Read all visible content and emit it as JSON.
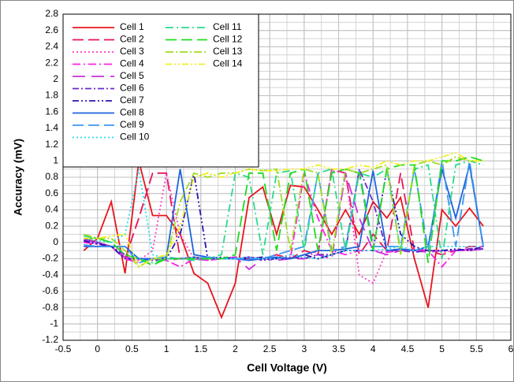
{
  "chart_data": {
    "type": "line",
    "xlabel": "Cell Voltage (V)",
    "ylabel": "Accuracy (mV)",
    "xlim": [
      -0.5,
      6
    ],
    "ylim": [
      -1.2,
      2.8
    ],
    "xticks": [
      -0.5,
      0,
      0.5,
      1,
      1.5,
      2,
      2.5,
      3,
      3.5,
      4,
      4.5,
      5,
      5.5,
      6
    ],
    "yticks": [
      -1.2,
      -1,
      -0.8,
      -0.6,
      -0.4,
      -0.2,
      0,
      0.2,
      0.4,
      0.6,
      0.8,
      1,
      1.2,
      1.4,
      1.6,
      1.8,
      2,
      2.2,
      2.4,
      2.6,
      2.8
    ],
    "grid": true,
    "xminor": 0.25,
    "yminor": 0.1,
    "legend": "upper left",
    "x": [
      -0.2,
      0,
      0.2,
      0.4,
      0.6,
      0.8,
      1,
      1.2,
      1.4,
      1.6,
      1.8,
      2,
      2.2,
      2.4,
      2.6,
      2.8,
      3,
      3.2,
      3.4,
      3.6,
      3.8,
      4,
      4.2,
      4.4,
      4.6,
      4.8,
      5,
      5.2,
      5.4,
      5.6
    ],
    "series": [
      {
        "name": "Cell 1",
        "color": "#e8141e",
        "dash": "",
        "values": [
          -0.1,
          0.05,
          0.5,
          -0.38,
          1.0,
          0.33,
          0.33,
          0.1,
          -0.38,
          -0.5,
          -0.92,
          -0.5,
          0.55,
          0.68,
          0.1,
          0.7,
          0.68,
          0.4,
          0.1,
          0.4,
          0.1,
          0.5,
          0.3,
          0.55,
          -0.2,
          -0.8,
          0.4,
          0.2,
          0.42,
          0.2
        ]
      },
      {
        "name": "Cell 2",
        "color": "#e8145a",
        "dash": "14,6",
        "values": [
          0.05,
          0,
          -0.05,
          -0.2,
          0.3,
          0.85,
          0.85,
          -0.2,
          -0.18,
          -0.2,
          -0.2,
          -0.18,
          -0.2,
          -0.2,
          -0.15,
          -0.2,
          -0.1,
          -0.15,
          0.9,
          0.85,
          -0.15,
          0.1,
          -0.1,
          0.85,
          -0.1,
          -0.1,
          -0.15,
          -0.1,
          -0.05,
          -0.05
        ]
      },
      {
        "name": "Cell 3",
        "color": "#ff3cc8",
        "dash": "2,3",
        "values": [
          0.02,
          -0.02,
          -0.05,
          -0.2,
          -0.22,
          -0.1,
          0.85,
          0.1,
          -0.2,
          -0.22,
          -0.2,
          -0.2,
          -0.18,
          -0.2,
          -0.2,
          -0.15,
          -0.2,
          -0.1,
          0.88,
          0.85,
          -0.4,
          -0.5,
          -0.1,
          -0.08,
          -0.1,
          -0.1,
          -0.12,
          -0.1,
          -0.1,
          -0.05
        ]
      },
      {
        "name": "Cell 4",
        "color": "#ff1ee6",
        "dash": "10,4,2,4",
        "values": [
          0,
          -0.02,
          -0.05,
          -0.2,
          -0.25,
          -0.2,
          -0.22,
          -0.3,
          -0.2,
          -0.22,
          -0.2,
          -0.2,
          -0.18,
          -0.2,
          -0.18,
          -0.2,
          0.85,
          0.3,
          -0.1,
          -0.15,
          -0.1,
          -0.1,
          -0.12,
          -0.1,
          -0.08,
          -0.1,
          -0.3,
          -0.1,
          -0.08,
          -0.05
        ]
      },
      {
        "name": "Cell 5",
        "color": "#c832dc",
        "dash": "16,8",
        "values": [
          0.03,
          0,
          -0.05,
          -0.18,
          -0.2,
          -0.2,
          -0.22,
          -0.2,
          -0.2,
          -0.22,
          -0.2,
          -0.18,
          -0.33,
          -0.2,
          -0.22,
          -0.2,
          -0.2,
          -0.15,
          -0.2,
          0.85,
          0.3,
          -0.1,
          -0.15,
          -0.1,
          -0.1,
          -0.12,
          -0.1,
          -0.1,
          -0.1,
          -0.08
        ]
      },
      {
        "name": "Cell 6",
        "color": "#6e28c8",
        "dash": "8,3,2,3",
        "values": [
          0.05,
          0,
          -0.05,
          -0.15,
          -0.2,
          -0.22,
          -0.2,
          -0.2,
          -0.18,
          -0.2,
          -0.2,
          -0.2,
          -0.18,
          -0.22,
          -0.2,
          -0.18,
          -0.2,
          -0.15,
          -0.15,
          -0.1,
          0.9,
          0.5,
          -0.1,
          -0.1,
          -0.12,
          -0.1,
          -0.1,
          -0.1,
          -0.08,
          -0.08
        ]
      },
      {
        "name": "Cell 7",
        "color": "#2814b4",
        "dash": "8,3,2,3,2,3",
        "values": [
          0.02,
          -0.02,
          -0.05,
          -0.2,
          -0.2,
          -0.2,
          -0.2,
          0.1,
          0.85,
          -0.2,
          -0.18,
          -0.2,
          -0.2,
          -0.18,
          -0.2,
          -0.2,
          -0.15,
          -0.2,
          -0.15,
          -0.1,
          -0.1,
          -0.1,
          0.9,
          0.1,
          -0.05,
          -0.1,
          -0.1,
          -0.08,
          -0.1,
          -0.05
        ]
      },
      {
        "name": "Cell 8",
        "color": "#1e64dc",
        "dash": "",
        "values": [
          -0.05,
          -0.05,
          -0.05,
          -0.05,
          -0.2,
          -0.2,
          -0.18,
          0.9,
          -0.15,
          -0.18,
          -0.2,
          -0.2,
          -0.22,
          -0.2,
          -0.18,
          -0.2,
          -0.15,
          -0.1,
          -0.1,
          -0.08,
          -0.05,
          0.88,
          -0.1,
          -0.08,
          -0.1,
          -0.05,
          0.9,
          0.3,
          0.95,
          -0.05
        ]
      },
      {
        "name": "Cell 9",
        "color": "#3c96f0",
        "dash": "14,6",
        "values": [
          -0.03,
          -0.05,
          -0.05,
          -0.05,
          -0.25,
          -0.2,
          -0.18,
          -0.2,
          -0.2,
          -0.18,
          -0.2,
          -0.2,
          -0.2,
          -0.2,
          -0.15,
          -0.1,
          -0.05,
          0.85,
          -0.1,
          -0.05,
          0.88,
          -0.05,
          -0.05,
          -0.05,
          0.9,
          -0.1,
          1.0,
          -0.05,
          1.0,
          -0.05
        ]
      },
      {
        "name": "Cell 10",
        "color": "#28dcf0",
        "dash": "2,3",
        "values": [
          0.05,
          0.02,
          0,
          0.1,
          0.9,
          -0.15,
          -0.2,
          -0.2,
          -0.18,
          -0.2,
          -0.2,
          -0.2,
          -0.18,
          -0.2,
          -0.2,
          -0.15,
          -0.18,
          -0.2,
          -0.15,
          -0.1,
          -0.1,
          -0.1,
          -0.08,
          -0.05,
          -0.1,
          -0.05,
          -0.05,
          -0.05,
          -0.05,
          -0.05
        ]
      },
      {
        "name": "Cell 11",
        "color": "#28dc8c",
        "dash": "10,4,2,4",
        "values": [
          0.08,
          0.05,
          0,
          -0.15,
          -0.2,
          -0.25,
          -0.2,
          -0.2,
          -0.22,
          -0.2,
          -0.15,
          0.85,
          0.8,
          -0.15,
          0.85,
          0.88,
          -0.1,
          0.85,
          0.9,
          -0.1,
          0.85,
          0.8,
          0.9,
          -0.1,
          0.9,
          0.95,
          -0.2,
          0.95,
          1.0,
          0.95
        ]
      },
      {
        "name": "Cell 12",
        "color": "#1edc1e",
        "dash": "14,6",
        "values": [
          0.05,
          0.05,
          0,
          -0.15,
          -0.2,
          -0.28,
          -0.2,
          -0.2,
          -0.2,
          -0.2,
          -0.2,
          -0.15,
          0.85,
          0.85,
          -0.1,
          0.85,
          0.9,
          -0.1,
          0.85,
          0.9,
          0.85,
          -0.1,
          0.9,
          0.95,
          0.95,
          -0.25,
          1.0,
          1.0,
          1.05,
          1.0
        ]
      },
      {
        "name": "Cell 13",
        "color": "#a0dc1e",
        "dash": "10,3,2,3",
        "values": [
          0.1,
          0.05,
          0.05,
          -0.1,
          -0.3,
          -0.2,
          -0.2,
          0.5,
          0.85,
          0.8,
          0.85,
          0.85,
          0.9,
          0.88,
          0.9,
          -0.1,
          0.9,
          0.85,
          -0.15,
          0.9,
          0.85,
          0.9,
          0.95,
          -0.15,
          0.95,
          1.0,
          0.95,
          1.05,
          1.0,
          1.0
        ]
      },
      {
        "name": "Cell 14",
        "color": "#f0f01e",
        "dash": "8,3,2,3,2,3",
        "values": [
          0.05,
          0.05,
          0.08,
          0.1,
          -0.3,
          -0.2,
          -0.15,
          0.2,
          0.8,
          0.85,
          0.8,
          0.85,
          0.9,
          0.88,
          0.88,
          0.9,
          0.9,
          0.95,
          0.9,
          0.9,
          0.95,
          0.92,
          1.0,
          0.95,
          1.0,
          1.0,
          1.05,
          1.1,
          1.0,
          1.0
        ]
      }
    ]
  }
}
